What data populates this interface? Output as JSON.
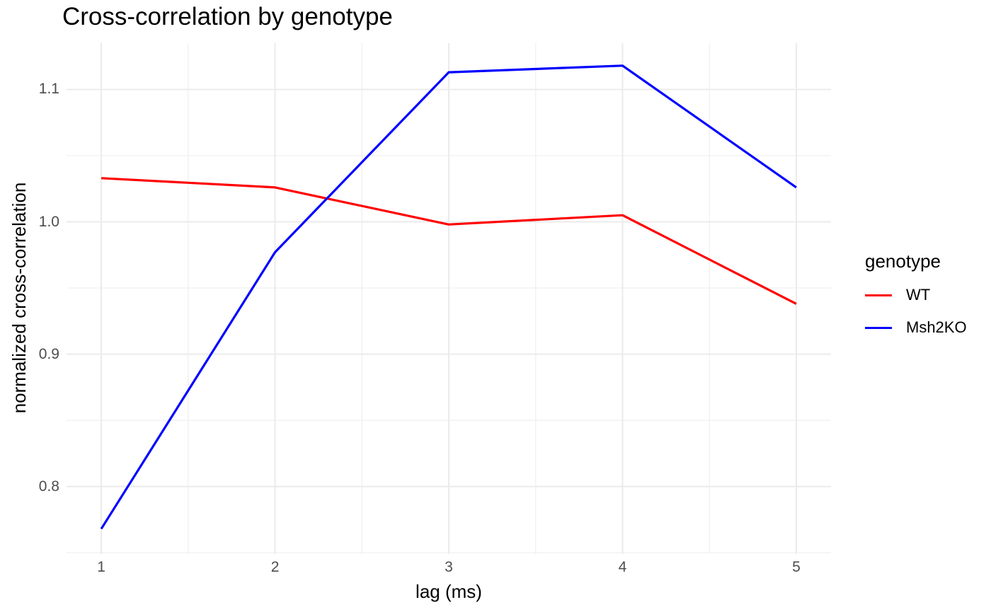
{
  "title": "Cross-correlation by genotype",
  "chart_data": {
    "type": "line",
    "title": "Cross-correlation by genotype",
    "xlabel": "lag (ms)",
    "ylabel": "normalized cross-correlation",
    "x": [
      1,
      2,
      3,
      4,
      5
    ],
    "series": [
      {
        "name": "WT",
        "color": "#ff0000",
        "values": [
          1.033,
          1.026,
          0.998,
          1.005,
          0.938
        ]
      },
      {
        "name": "Msh2KO",
        "color": "#0000ff",
        "values": [
          0.768,
          0.977,
          1.113,
          1.118,
          1.026
        ]
      }
    ],
    "xlim": [
      0.8,
      5.2
    ],
    "ylim": [
      0.749,
      1.135
    ],
    "x_ticks": [
      1,
      2,
      3,
      4,
      5
    ],
    "x_tick_labels": [
      "1",
      "2",
      "3",
      "4",
      "5"
    ],
    "y_ticks": [
      0.8,
      0.9,
      1.0,
      1.1
    ],
    "y_tick_labels": [
      "0.8",
      "0.9",
      "1.0",
      "1.1"
    ],
    "x_minor_gridlines": [
      1.5,
      2.5,
      3.5,
      4.5
    ],
    "y_minor_gridlines": [
      0.75,
      0.85,
      0.95,
      1.05
    ],
    "grid": "on",
    "legend_position": "right",
    "legend": {
      "title": "genotype",
      "items": [
        {
          "label": "WT",
          "color": "#ff0000"
        },
        {
          "label": "Msh2KO",
          "color": "#0000ff"
        }
      ]
    }
  },
  "colors": {
    "background": "#ffffff",
    "grid_major": "#ebebeb",
    "grid_minor": "#f0f0f0",
    "tick_text": "#4d4d4d",
    "text": "#000000"
  }
}
